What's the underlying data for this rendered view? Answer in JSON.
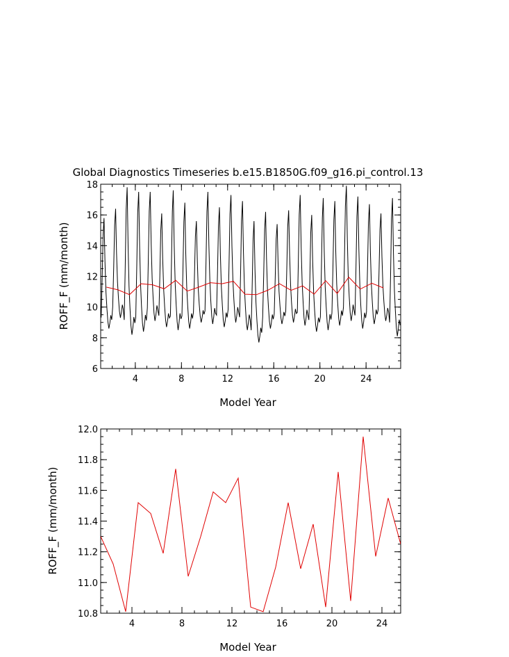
{
  "title": "Global Diagnostics Timeseries b.e15.B1850G.f09_g16.pi_control.13",
  "chart_data": [
    {
      "type": "line",
      "xlabel": "Model Year",
      "ylabel": "ROFF_F (mm/month)",
      "xlim": [
        1.0,
        27.0
      ],
      "ylim": [
        6,
        18
      ],
      "xticks": [
        4,
        8,
        12,
        16,
        20,
        24
      ],
      "yticks": [
        6,
        8,
        10,
        12,
        14,
        16,
        18
      ],
      "grid": false,
      "series": [
        {
          "color": "#000000",
          "peak_values": [
            15.8,
            16.4,
            17.8,
            17.5,
            17.5,
            16.1,
            17.6,
            16.8,
            15.6,
            17.5,
            16.5,
            17.3,
            16.9,
            15.6,
            16.2,
            15.4,
            16.3,
            17.3,
            16.0,
            17.1,
            16.9,
            17.9,
            17.2,
            16.7,
            16.1,
            17.1,
            16.6
          ],
          "trough_values": [
            8.6,
            9.3,
            8.2,
            8.4,
            9.1,
            8.7,
            8.5,
            8.6,
            9.0,
            8.9,
            8.7,
            9.0,
            8.5,
            7.7,
            8.6,
            8.9,
            9.0,
            8.8,
            8.4,
            8.5,
            8.8,
            9.1,
            8.6,
            8.9,
            9.1,
            8.1,
            8.6
          ]
        },
        {
          "color": "#e00000",
          "x": [
            1.5,
            2.5,
            3.5,
            4.5,
            5.5,
            6.5,
            7.5,
            8.5,
            9.5,
            10.5,
            11.5,
            12.5,
            13.5,
            14.5,
            15.5,
            16.5,
            17.5,
            18.5,
            19.5,
            20.5,
            21.5,
            22.5,
            23.5,
            24.5,
            25.5
          ],
          "values": [
            11.3,
            11.12,
            10.81,
            11.52,
            11.45,
            11.19,
            11.74,
            11.04,
            11.3,
            11.59,
            11.52,
            11.68,
            10.84,
            10.81,
            11.1,
            11.52,
            11.09,
            11.38,
            10.84,
            11.72,
            10.88,
            11.95,
            11.17,
            11.55,
            11.25
          ]
        }
      ]
    },
    {
      "type": "line",
      "xlabel": "Model Year",
      "ylabel": "ROFF_F (mm/month)",
      "xlim": [
        1.5,
        25.5
      ],
      "ylim": [
        10.8,
        12.0
      ],
      "xticks": [
        4,
        8,
        12,
        16,
        20,
        24
      ],
      "yticks": [
        "10.8",
        "11.0",
        "11.2",
        "11.4",
        "11.6",
        "11.8",
        "12.0"
      ],
      "grid": false,
      "series": [
        {
          "color": "#e00000",
          "x": [
            1.5,
            2.5,
            3.5,
            4.5,
            5.5,
            6.5,
            7.5,
            8.5,
            9.5,
            10.5,
            11.5,
            12.5,
            13.5,
            14.5,
            15.5,
            16.5,
            17.5,
            18.5,
            19.5,
            20.5,
            21.5,
            22.5,
            23.5,
            24.5,
            25.5
          ],
          "values": [
            11.3,
            11.12,
            10.81,
            11.52,
            11.45,
            11.19,
            11.74,
            11.04,
            11.3,
            11.59,
            11.52,
            11.68,
            10.84,
            10.81,
            11.1,
            11.52,
            11.09,
            11.38,
            10.84,
            11.72,
            10.88,
            11.95,
            11.17,
            11.55,
            11.25
          ]
        }
      ]
    }
  ]
}
